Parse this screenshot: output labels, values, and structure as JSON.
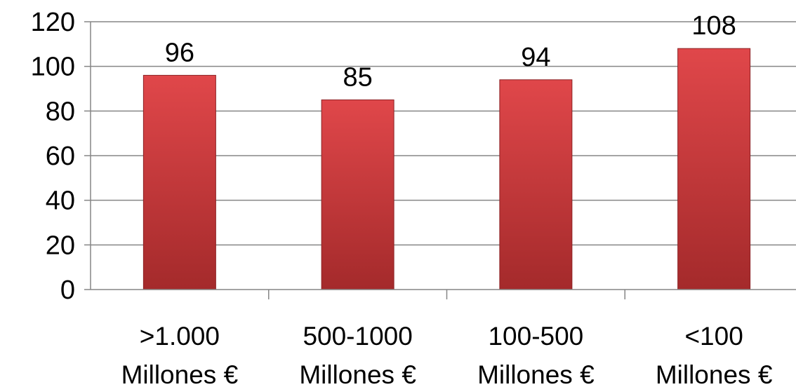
{
  "chart_data": {
    "type": "bar",
    "categories": [
      ">1.000 Millones €",
      "500-1000 Millones €",
      "100-500 Millones €",
      "<100 Millones €"
    ],
    "category_lines": [
      [
        ">1.000",
        "Millones €"
      ],
      [
        "500-1000",
        "Millones €"
      ],
      [
        "100-500",
        "Millones €"
      ],
      [
        "<100",
        "Millones €"
      ]
    ],
    "values": [
      96,
      85,
      94,
      108
    ],
    "data_labels": [
      "96",
      "85",
      "94",
      "108"
    ],
    "y_ticks": [
      0,
      20,
      40,
      60,
      80,
      100,
      120
    ],
    "ylim": [
      0,
      120
    ],
    "grid": true,
    "legend": "none",
    "title": "",
    "xlabel": "",
    "ylabel": "",
    "colors": {
      "bar_top": "#e0474a",
      "bar_bottom": "#a42a2b",
      "bar_edge": "#8c2224",
      "grid": "#868686",
      "axis": "#868686"
    }
  }
}
